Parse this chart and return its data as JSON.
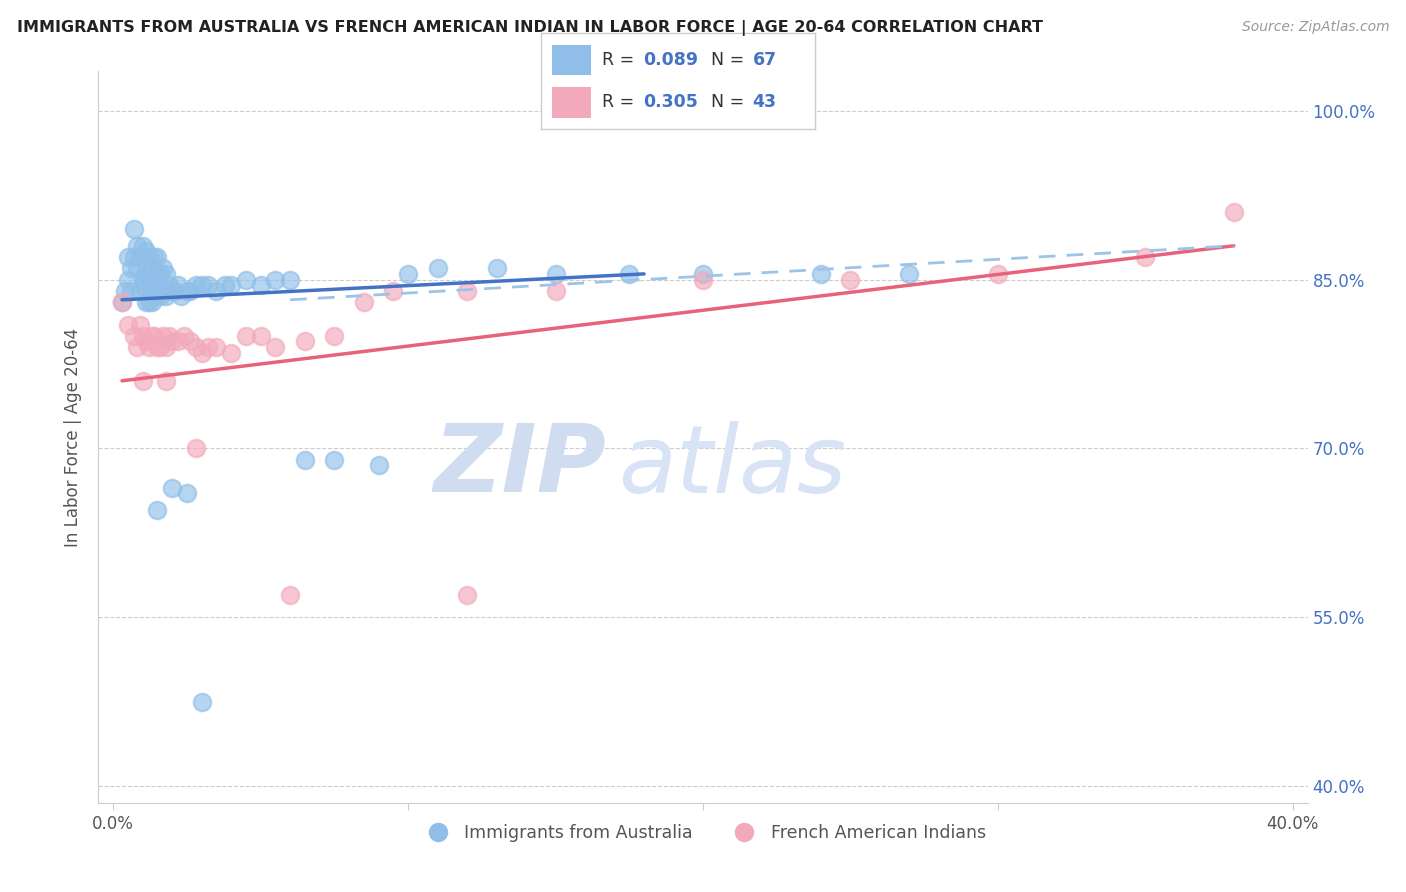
{
  "title": "IMMIGRANTS FROM AUSTRALIA VS FRENCH AMERICAN INDIAN IN LABOR FORCE | AGE 20-64 CORRELATION CHART",
  "source": "Source: ZipAtlas.com",
  "ylabel": "In Labor Force | Age 20-64",
  "xlim": [
    -0.005,
    0.405
  ],
  "ylim": [
    0.385,
    1.035
  ],
  "xticks": [
    0.0,
    0.1,
    0.2,
    0.3,
    0.4
  ],
  "xtick_labels": [
    "0.0%",
    "",
    "",
    "",
    "40.0%"
  ],
  "yticks": [
    0.4,
    0.55,
    0.7,
    0.85,
    1.0
  ],
  "ytick_labels": [
    "40.0%",
    "55.0%",
    "70.0%",
    "85.0%",
    "100.0%"
  ],
  "color_blue": "#8FBFE8",
  "color_pink": "#F2AABB",
  "color_blue_line": "#4472C4",
  "color_pink_line": "#E8637A",
  "color_dashed": "#9DC3E6",
  "watermark_zip": "ZIP",
  "watermark_atlas": "atlas",
  "blue_scatter_x": [
    0.003,
    0.004,
    0.005,
    0.005,
    0.006,
    0.006,
    0.007,
    0.007,
    0.008,
    0.008,
    0.009,
    0.009,
    0.01,
    0.01,
    0.01,
    0.011,
    0.011,
    0.011,
    0.012,
    0.012,
    0.012,
    0.013,
    0.013,
    0.013,
    0.014,
    0.014,
    0.015,
    0.015,
    0.015,
    0.016,
    0.016,
    0.017,
    0.017,
    0.018,
    0.018,
    0.019,
    0.02,
    0.021,
    0.022,
    0.023,
    0.025,
    0.026,
    0.028,
    0.03,
    0.032,
    0.035,
    0.038,
    0.04,
    0.045,
    0.05,
    0.055,
    0.06,
    0.065,
    0.075,
    0.09,
    0.1,
    0.11,
    0.13,
    0.15,
    0.175,
    0.2,
    0.24,
    0.27,
    0.015,
    0.02,
    0.025,
    0.03
  ],
  "blue_scatter_y": [
    0.83,
    0.84,
    0.85,
    0.87,
    0.84,
    0.86,
    0.87,
    0.895,
    0.86,
    0.88,
    0.84,
    0.87,
    0.845,
    0.85,
    0.88,
    0.83,
    0.855,
    0.875,
    0.83,
    0.855,
    0.87,
    0.84,
    0.86,
    0.83,
    0.85,
    0.87,
    0.84,
    0.855,
    0.87,
    0.835,
    0.855,
    0.84,
    0.86,
    0.835,
    0.855,
    0.845,
    0.84,
    0.84,
    0.845,
    0.835,
    0.84,
    0.84,
    0.845,
    0.845,
    0.845,
    0.84,
    0.845,
    0.845,
    0.85,
    0.845,
    0.85,
    0.85,
    0.69,
    0.69,
    0.685,
    0.855,
    0.86,
    0.86,
    0.855,
    0.855,
    0.855,
    0.855,
    0.855,
    0.645,
    0.665,
    0.66,
    0.475
  ],
  "pink_scatter_x": [
    0.003,
    0.005,
    0.007,
    0.008,
    0.009,
    0.01,
    0.011,
    0.012,
    0.013,
    0.014,
    0.015,
    0.016,
    0.017,
    0.018,
    0.019,
    0.02,
    0.022,
    0.024,
    0.026,
    0.028,
    0.03,
    0.032,
    0.035,
    0.04,
    0.045,
    0.05,
    0.055,
    0.065,
    0.075,
    0.085,
    0.095,
    0.12,
    0.15,
    0.2,
    0.25,
    0.3,
    0.35,
    0.38,
    0.01,
    0.018,
    0.028,
    0.06,
    0.12
  ],
  "pink_scatter_y": [
    0.83,
    0.81,
    0.8,
    0.79,
    0.81,
    0.8,
    0.795,
    0.79,
    0.8,
    0.8,
    0.79,
    0.79,
    0.8,
    0.79,
    0.8,
    0.795,
    0.795,
    0.8,
    0.795,
    0.79,
    0.785,
    0.79,
    0.79,
    0.785,
    0.8,
    0.8,
    0.79,
    0.795,
    0.8,
    0.83,
    0.84,
    0.84,
    0.84,
    0.85,
    0.85,
    0.855,
    0.87,
    0.91,
    0.76,
    0.76,
    0.7,
    0.57,
    0.57
  ],
  "blue_line_x": [
    0.003,
    0.18
  ],
  "blue_line_y": [
    0.832,
    0.855
  ],
  "pink_line_x": [
    0.003,
    0.38
  ],
  "pink_line_y": [
    0.76,
    0.88
  ],
  "dashed_line_x": [
    0.06,
    0.38
  ],
  "dashed_line_y": [
    0.832,
    0.88
  ]
}
